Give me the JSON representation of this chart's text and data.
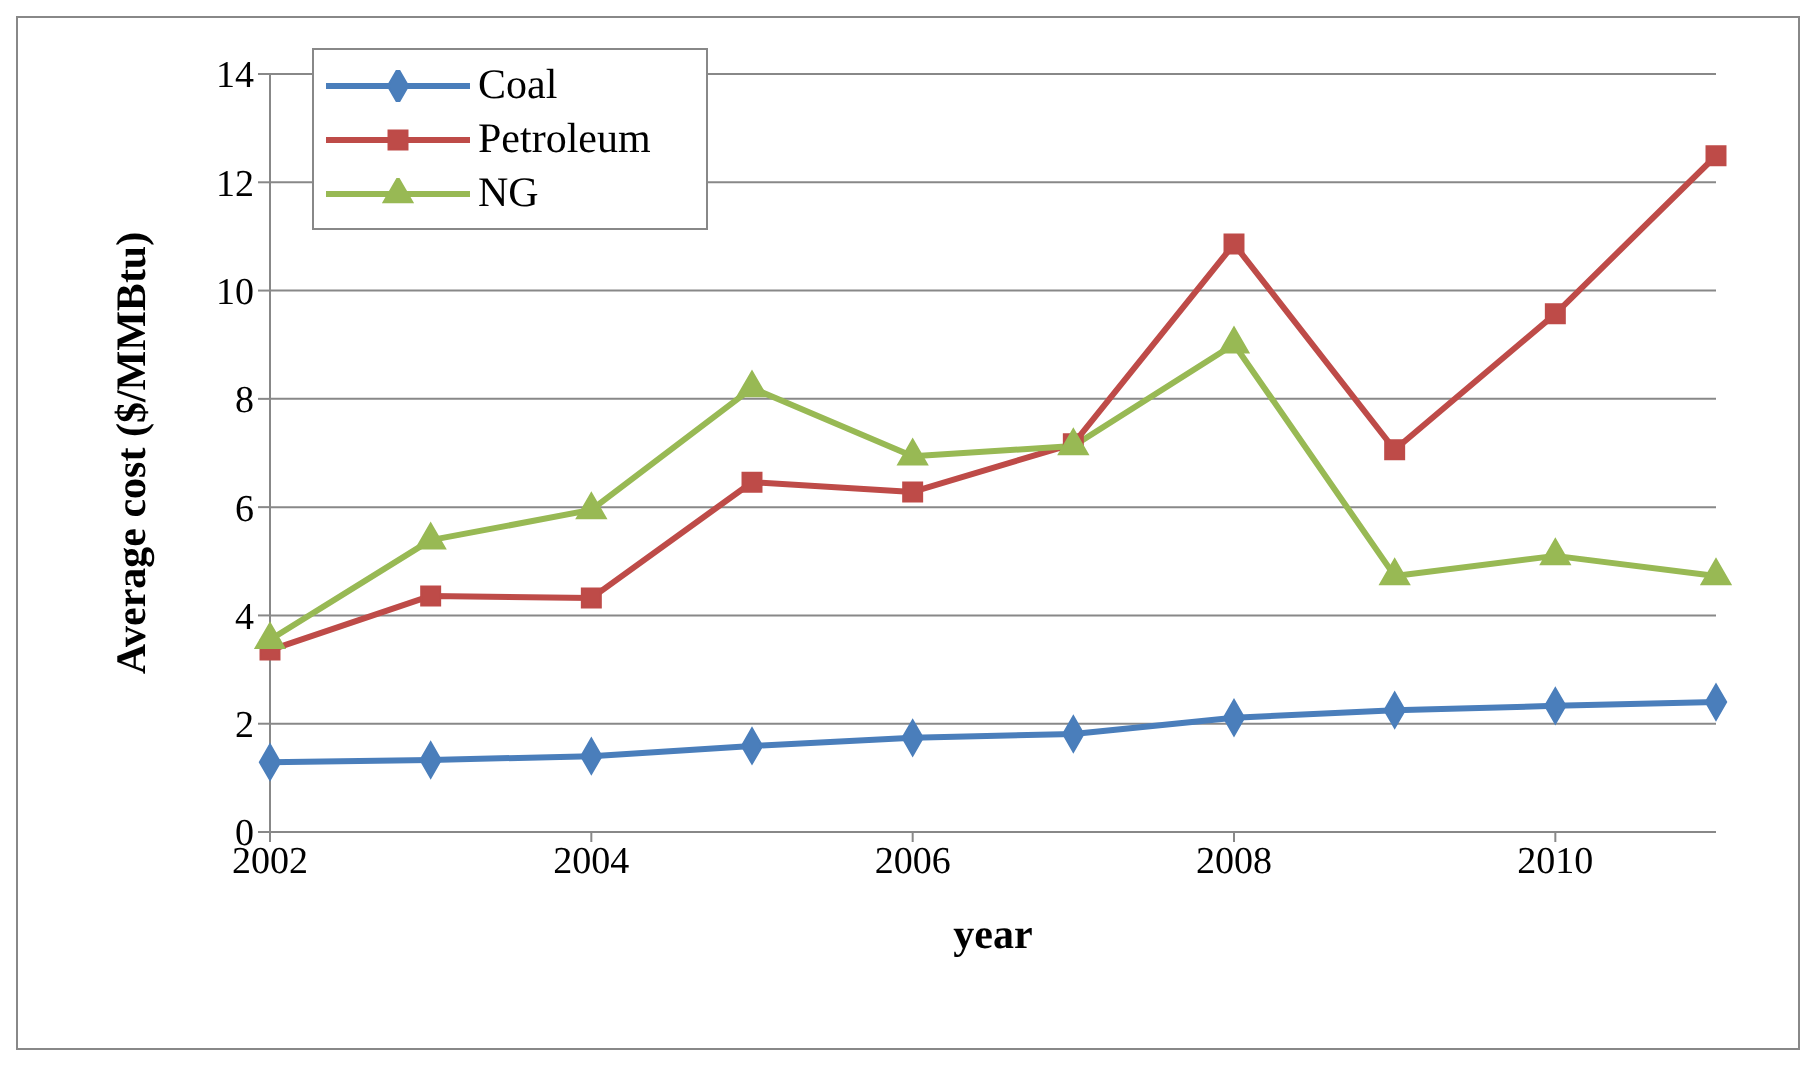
{
  "chart_data": {
    "type": "line",
    "xlabel": "year",
    "ylabel": "Average cost ($/MMBtu)",
    "x": [
      2002,
      2003,
      2004,
      2005,
      2006,
      2007,
      2008,
      2009,
      2010,
      2011
    ],
    "series": [
      {
        "name": "Coal",
        "color": "#4a7ebb",
        "marker": "diamond",
        "values": [
          1.29,
          1.33,
          1.4,
          1.59,
          1.74,
          1.81,
          2.11,
          2.25,
          2.33,
          2.4
        ]
      },
      {
        "name": "Petroleum",
        "color": "#be4b48",
        "marker": "square",
        "values": [
          3.36,
          4.36,
          4.32,
          6.46,
          6.28,
          7.17,
          10.86,
          7.06,
          9.57,
          12.49
        ]
      },
      {
        "name": "NG",
        "color": "#98b954",
        "marker": "triangle",
        "values": [
          3.55,
          5.39,
          5.95,
          8.2,
          6.94,
          7.13,
          9.01,
          4.73,
          5.1,
          4.73
        ]
      }
    ],
    "xlim": [
      2002,
      2011
    ],
    "xticks": [
      2002,
      2004,
      2006,
      2008,
      2010
    ],
    "ylim": [
      0,
      14
    ],
    "yticks": [
      0,
      2,
      4,
      6,
      8,
      10,
      12,
      14
    ],
    "grid": "y",
    "legend": "top left",
    "line_style": "solid"
  }
}
